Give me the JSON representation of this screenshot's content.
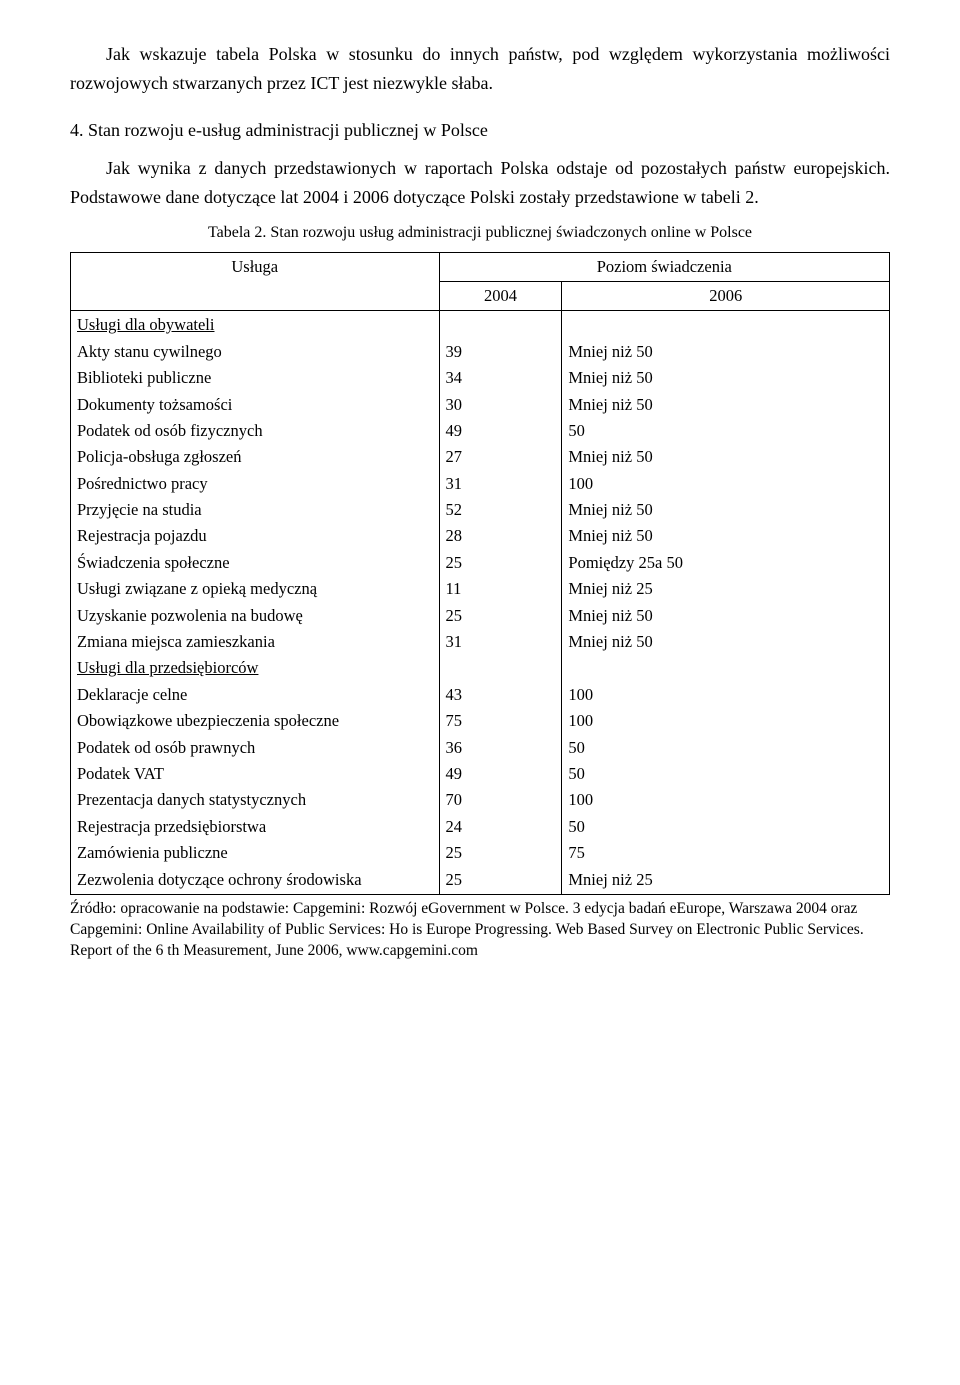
{
  "intro_paragraph": "Jak wskazuje tabela Polska w stosunku do innych państw, pod względem wykorzystania możliwości rozwojowych stwarzanych przez ICT jest niezwykle słaba.",
  "section_heading": "4. Stan rozwoju e-usług administracji publicznej w Polsce",
  "body_paragraph": "Jak wynika z danych przedstawionych w raportach Polska odstaje od pozostałych państw europejskich. Podstawowe dane dotyczące lat 2004 i 2006 dotyczące Polski zostały przedstawione w tabeli 2.",
  "table_caption": "Tabela 2. Stan rozwoju usług administracji publicznej świadczonych online w Polsce",
  "table": {
    "header_service": "Usługa",
    "header_level": "Poziom świadczenia",
    "header_2004": "2004",
    "header_2006": "2006",
    "section1_title": "Usługi dla obywateli",
    "section2_title": "Usługi dla przedsiębiorców",
    "rows_citizens": [
      {
        "service": "Akty stanu cywilnego",
        "v2004": "39",
        "v2006": "Mniej niż 50"
      },
      {
        "service": "Biblioteki publiczne",
        "v2004": "34",
        "v2006": "Mniej niż 50"
      },
      {
        "service": "Dokumenty tożsamości",
        "v2004": "30",
        "v2006": "Mniej niż 50"
      },
      {
        "service": "Podatek od osób fizycznych",
        "v2004": "49",
        "v2006": "50"
      },
      {
        "service": "Policja-obsługa zgłoszeń",
        "v2004": "27",
        "v2006": "Mniej niż 50"
      },
      {
        "service": "Pośrednictwo pracy",
        "v2004": "31",
        "v2006": "100"
      },
      {
        "service": "Przyjęcie na studia",
        "v2004": "52",
        "v2006": "Mniej niż 50"
      },
      {
        "service": "Rejestracja pojazdu",
        "v2004": "28",
        "v2006": "Mniej niż 50"
      },
      {
        "service": "Świadczenia społeczne",
        "v2004": "25",
        "v2006": "Pomiędzy 25a 50"
      },
      {
        "service": "Usługi związane z opieką medyczną",
        "v2004": "11",
        "v2006": "Mniej niż 25"
      },
      {
        "service": "Uzyskanie pozwolenia na budowę",
        "v2004": "25",
        "v2006": "Mniej niż 50"
      },
      {
        "service": "Zmiana miejsca zamieszkania",
        "v2004": "31",
        "v2006": "Mniej niż 50"
      }
    ],
    "rows_business": [
      {
        "service": "Deklaracje celne",
        "v2004": "43",
        "v2006": "100"
      },
      {
        "service": "Obowiązkowe ubezpieczenia społeczne",
        "v2004": "75",
        "v2006": "100"
      },
      {
        "service": "Podatek od osób prawnych",
        "v2004": "36",
        "v2006": "50"
      },
      {
        "service": "Podatek VAT",
        "v2004": "49",
        "v2006": "50"
      },
      {
        "service": "Prezentacja danych statystycznych",
        "v2004": "70",
        "v2006": "100"
      },
      {
        "service": "Rejestracja przedsiębiorstwa",
        "v2004": "24",
        "v2006": "50"
      },
      {
        "service": "Zamówienia publiczne",
        "v2004": "25",
        "v2006": "75"
      },
      {
        "service": "Zezwolenia dotyczące ochrony środowiska",
        "v2004": "25",
        "v2006": "Mniej niż 25"
      }
    ]
  },
  "source_note": "Źródło: opracowanie na podstawie: Capgemini: Rozwój eGovernment w Polsce. 3 edycja badań eEurope, Warszawa 2004 oraz Capgemini: Online Availability of Public Services: Ho is Europe Progressing. Web Based Survey on Electronic Public Services. Report of the 6 th Measurement, June 2006, www.capgemini.com"
}
